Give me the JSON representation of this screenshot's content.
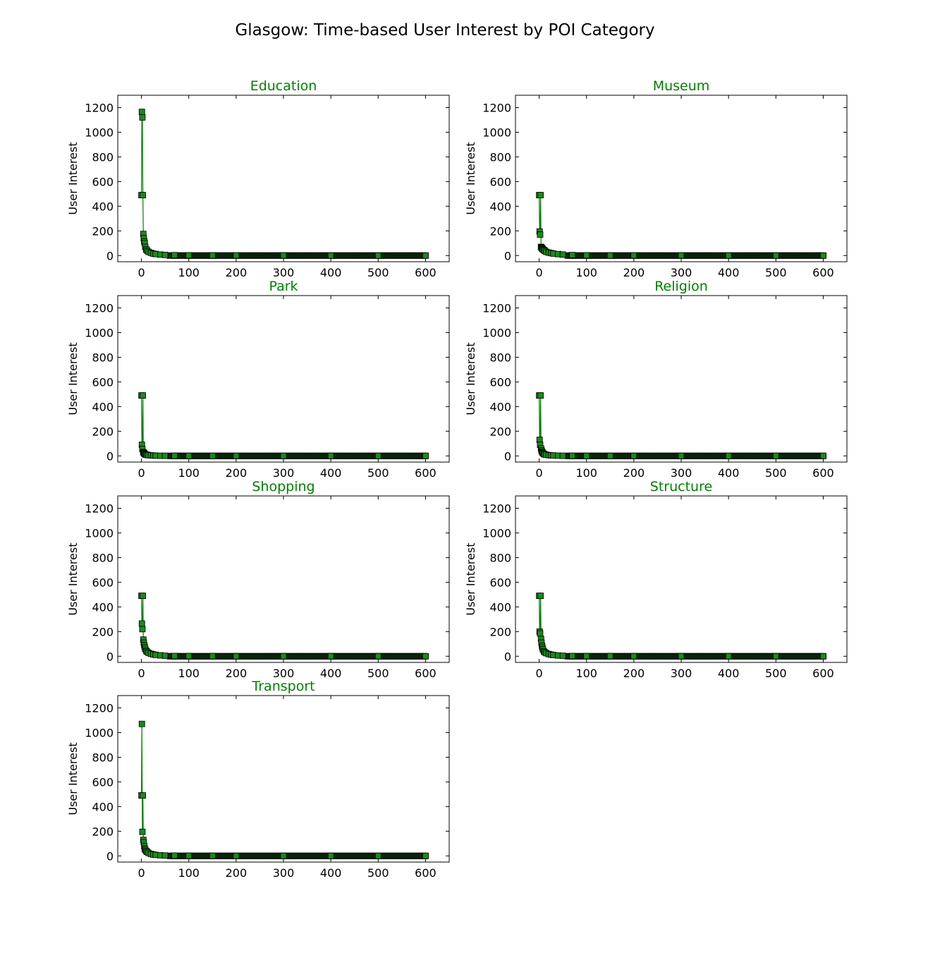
{
  "figure": {
    "title": "Glasgow: Time-based User Interest by POI Category"
  },
  "style": {
    "line_color": "#008000",
    "marker_fill": "#1a8a1a",
    "marker_edge": "#000000",
    "title_color": "#008000"
  },
  "chart_data": [
    {
      "type": "line",
      "title": "Education",
      "ylabel": "User Interest",
      "xlim": [
        -50,
        650
      ],
      "ylim": [
        -50,
        1300
      ],
      "xticks": [
        0,
        100,
        200,
        300,
        400,
        500,
        600
      ],
      "yticks": [
        0,
        200,
        400,
        600,
        800,
        1000,
        1200
      ],
      "series": [
        {
          "x": [
            0,
            1,
            2,
            3,
            4,
            5,
            6,
            7,
            8,
            10,
            12,
            15,
            20,
            25,
            30,
            40,
            50,
            70,
            100,
            150,
            200,
            300,
            400,
            500,
            600
          ],
          "y": [
            490,
            1165,
            1120,
            490,
            175,
            140,
            115,
            100,
            70,
            50,
            40,
            30,
            22,
            16,
            12,
            8,
            5,
            3,
            2,
            1,
            1,
            1,
            0,
            0,
            0
          ]
        }
      ]
    },
    {
      "type": "line",
      "title": "Museum",
      "ylabel": "User Interest",
      "xlim": [
        -50,
        650
      ],
      "ylim": [
        -50,
        1300
      ],
      "xticks": [
        0,
        100,
        200,
        300,
        400,
        500,
        600
      ],
      "yticks": [
        0,
        200,
        400,
        600,
        800,
        1000,
        1200
      ],
      "series": [
        {
          "x": [
            0,
            1,
            2,
            3,
            4,
            5,
            6,
            7,
            8,
            10,
            12,
            15,
            20,
            25,
            30,
            40,
            50,
            70,
            100,
            150,
            200,
            300,
            400,
            500,
            600
          ],
          "y": [
            490,
            195,
            170,
            490,
            70,
            65,
            60,
            55,
            50,
            45,
            38,
            30,
            24,
            20,
            16,
            12,
            8,
            4,
            2,
            1,
            1,
            1,
            0,
            0,
            0
          ]
        }
      ]
    },
    {
      "type": "line",
      "title": "Park",
      "ylabel": "User Interest",
      "xlim": [
        -50,
        650
      ],
      "ylim": [
        -50,
        1300
      ],
      "xticks": [
        0,
        100,
        200,
        300,
        400,
        500,
        600
      ],
      "yticks": [
        0,
        200,
        400,
        600,
        800,
        1000,
        1200
      ],
      "series": [
        {
          "x": [
            0,
            1,
            2,
            3,
            4,
            5,
            6,
            7,
            8,
            10,
            12,
            15,
            20,
            25,
            30,
            40,
            50,
            70,
            100,
            150,
            200,
            300,
            400,
            500,
            600
          ],
          "y": [
            490,
            90,
            55,
            490,
            30,
            25,
            20,
            15,
            12,
            10,
            8,
            6,
            4,
            3,
            2,
            1,
            1,
            1,
            0,
            0,
            0,
            0,
            0,
            0,
            0
          ]
        }
      ]
    },
    {
      "type": "line",
      "title": "Religion",
      "ylabel": "User Interest",
      "xlim": [
        -50,
        650
      ],
      "ylim": [
        -50,
        1300
      ],
      "xticks": [
        0,
        100,
        200,
        300,
        400,
        500,
        600
      ],
      "yticks": [
        0,
        200,
        400,
        600,
        800,
        1000,
        1200
      ],
      "series": [
        {
          "x": [
            0,
            1,
            2,
            3,
            4,
            5,
            6,
            7,
            8,
            10,
            12,
            15,
            20,
            25,
            30,
            40,
            50,
            70,
            100,
            150,
            200,
            300,
            400,
            500,
            600
          ],
          "y": [
            490,
            130,
            90,
            490,
            60,
            45,
            35,
            28,
            22,
            16,
            12,
            9,
            6,
            4,
            3,
            2,
            1,
            1,
            0,
            0,
            0,
            0,
            0,
            0,
            0
          ]
        }
      ]
    },
    {
      "type": "line",
      "title": "Shopping",
      "ylabel": "User Interest",
      "xlim": [
        -50,
        650
      ],
      "ylim": [
        -50,
        1300
      ],
      "xticks": [
        0,
        100,
        200,
        300,
        400,
        500,
        600
      ],
      "yticks": [
        0,
        200,
        400,
        600,
        800,
        1000,
        1200
      ],
      "series": [
        {
          "x": [
            0,
            1,
            2,
            3,
            4,
            5,
            6,
            7,
            8,
            10,
            12,
            15,
            20,
            25,
            30,
            40,
            50,
            70,
            100,
            150,
            200,
            300,
            400,
            500,
            600
          ],
          "y": [
            490,
            265,
            220,
            490,
            135,
            110,
            90,
            75,
            60,
            45,
            36,
            28,
            20,
            15,
            11,
            7,
            4,
            2,
            1,
            1,
            0,
            0,
            0,
            0,
            0
          ]
        }
      ]
    },
    {
      "type": "line",
      "title": "Structure",
      "ylabel": "User Interest",
      "xlim": [
        -50,
        650
      ],
      "ylim": [
        -50,
        1300
      ],
      "xticks": [
        0,
        100,
        200,
        300,
        400,
        500,
        600
      ],
      "yticks": [
        0,
        200,
        400,
        600,
        800,
        1000,
        1200
      ],
      "series": [
        {
          "x": [
            0,
            1,
            2,
            3,
            4,
            5,
            6,
            7,
            8,
            10,
            12,
            15,
            20,
            25,
            30,
            40,
            50,
            70,
            100,
            150,
            200,
            300,
            400,
            500,
            600
          ],
          "y": [
            490,
            200,
            185,
            490,
            140,
            110,
            85,
            70,
            55,
            40,
            32,
            25,
            18,
            13,
            10,
            6,
            4,
            2,
            1,
            1,
            0,
            0,
            0,
            0,
            0
          ]
        }
      ]
    },
    {
      "type": "line",
      "title": "Transport",
      "ylabel": "User Interest",
      "xlim": [
        -50,
        650
      ],
      "ylim": [
        -50,
        1300
      ],
      "xticks": [
        0,
        100,
        200,
        300,
        400,
        500,
        600
      ],
      "yticks": [
        0,
        200,
        400,
        600,
        800,
        1000,
        1200
      ],
      "series": [
        {
          "x": [
            0,
            1,
            2,
            3,
            4,
            5,
            6,
            7,
            8,
            10,
            12,
            15,
            20,
            25,
            30,
            40,
            50,
            70,
            100,
            150,
            200,
            300,
            400,
            500,
            600
          ],
          "y": [
            490,
            1070,
            195,
            490,
            130,
            110,
            80,
            60,
            50,
            40,
            32,
            24,
            16,
            11,
            8,
            5,
            3,
            2,
            1,
            1,
            0,
            0,
            0,
            0,
            0
          ]
        }
      ]
    }
  ]
}
